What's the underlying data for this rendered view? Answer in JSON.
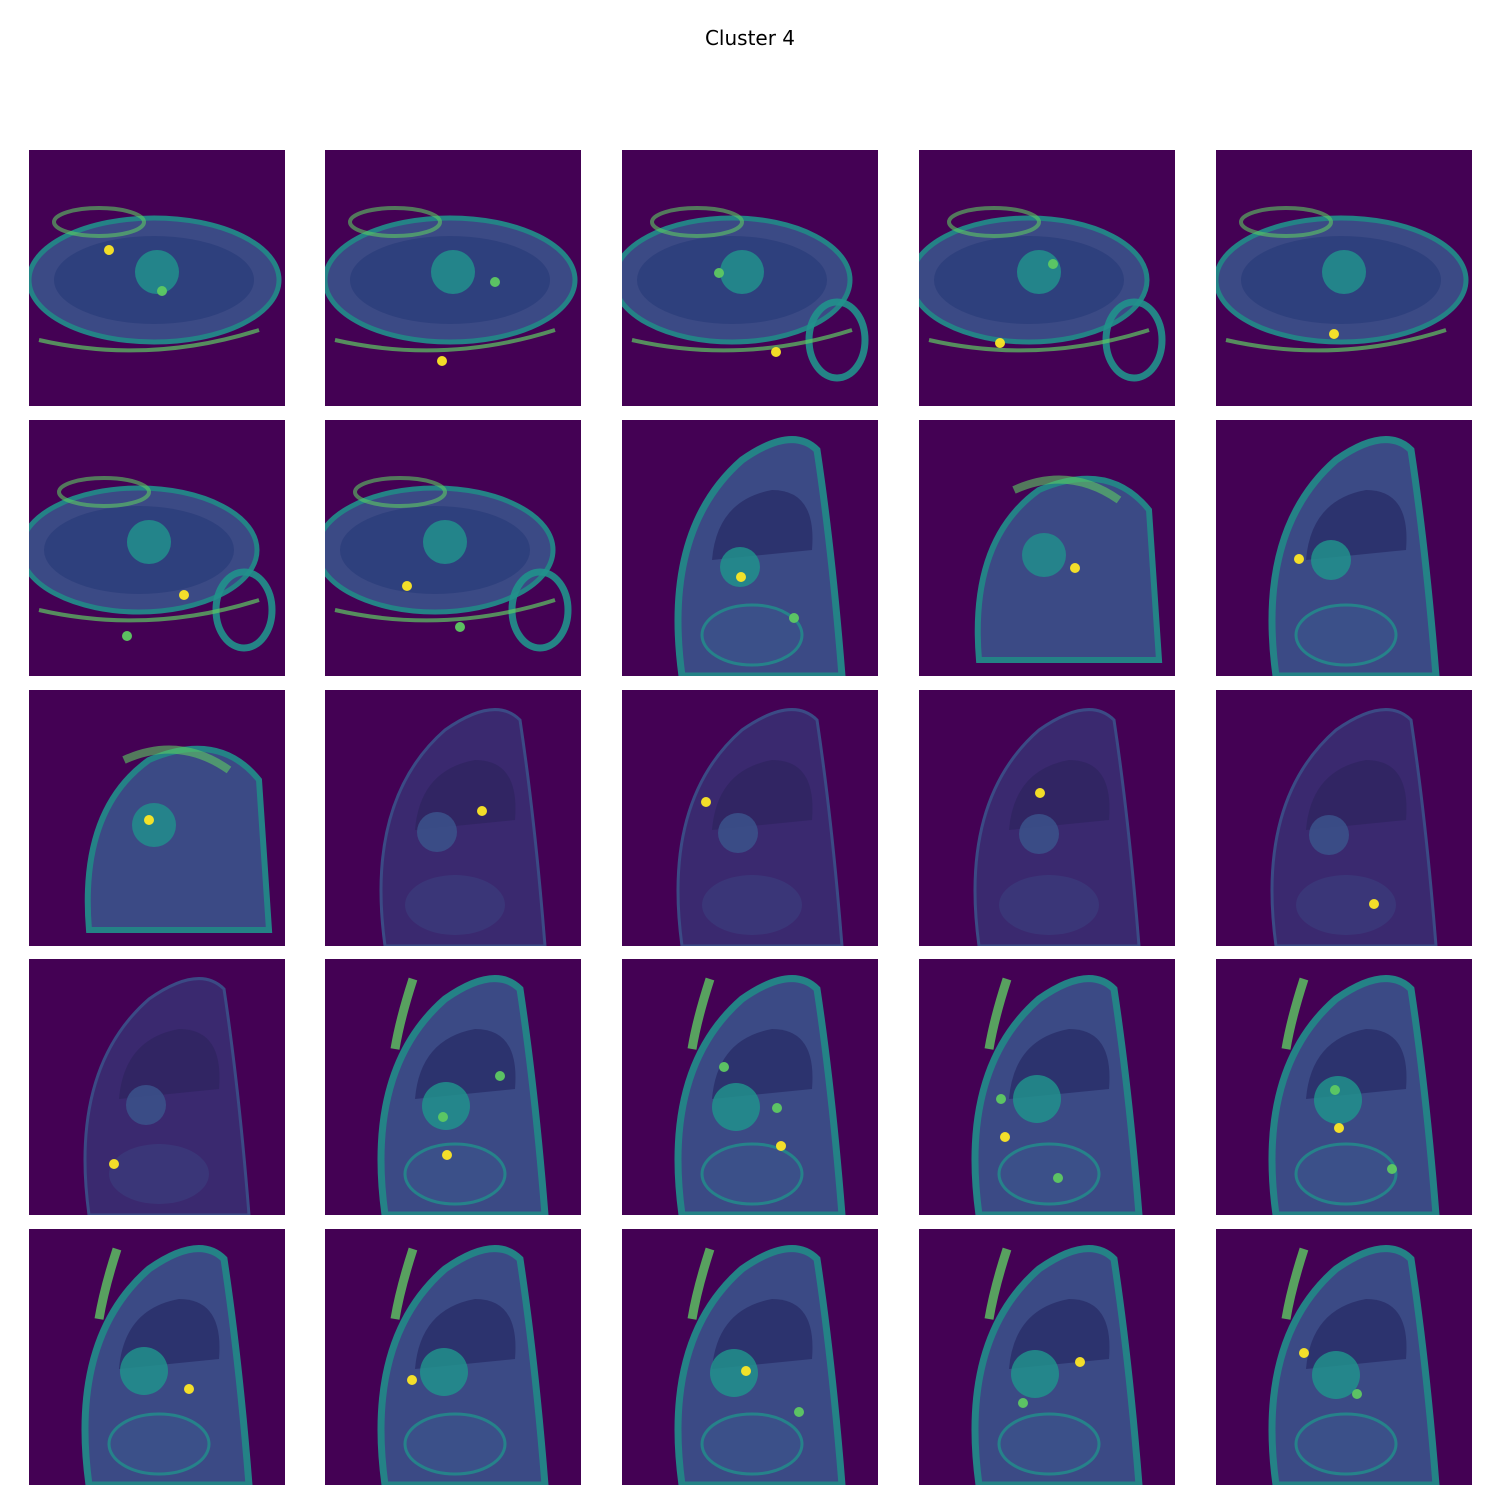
{
  "figure": {
    "title": "Cluster 4",
    "colormap": [
      "#440154",
      "#3b528b",
      "#21918c",
      "#5ec962",
      "#fde725"
    ],
    "background_color": "#440154",
    "rows": 5,
    "columns": 5
  },
  "tiles": [
    {
      "view": "axial",
      "bright_spots": 2
    },
    {
      "view": "axial",
      "bright_spots": 2
    },
    {
      "view": "axial-right",
      "bright_spots": 2
    },
    {
      "view": "axial-right",
      "bright_spots": 2
    },
    {
      "view": "axial",
      "bright_spots": 1
    },
    {
      "view": "axial-right",
      "bright_spots": 2
    },
    {
      "view": "axial-right",
      "bright_spots": 2
    },
    {
      "view": "sagittal",
      "bright_spots": 2
    },
    {
      "view": "oblique",
      "bright_spots": 1
    },
    {
      "view": "sagittal",
      "bright_spots": 1
    },
    {
      "view": "oblique",
      "bright_spots": 1
    },
    {
      "view": "sagittal-dim",
      "bright_spots": 1
    },
    {
      "view": "sagittal-dim",
      "bright_spots": 1
    },
    {
      "view": "sagittal-dim",
      "bright_spots": 1
    },
    {
      "view": "sagittal-dim",
      "bright_spots": 1
    },
    {
      "view": "sagittal-dim",
      "bright_spots": 1
    },
    {
      "view": "sagittal-bright",
      "bright_spots": 3
    },
    {
      "view": "sagittal-bright",
      "bright_spots": 3
    },
    {
      "view": "sagittal-bright",
      "bright_spots": 3
    },
    {
      "view": "sagittal-bright",
      "bright_spots": 3
    },
    {
      "view": "sagittal-bright",
      "bright_spots": 1
    },
    {
      "view": "sagittal-bright",
      "bright_spots": 1
    },
    {
      "view": "sagittal-bright",
      "bright_spots": 2
    },
    {
      "view": "sagittal-bright",
      "bright_spots": 2
    },
    {
      "view": "sagittal-bright",
      "bright_spots": 2
    }
  ]
}
